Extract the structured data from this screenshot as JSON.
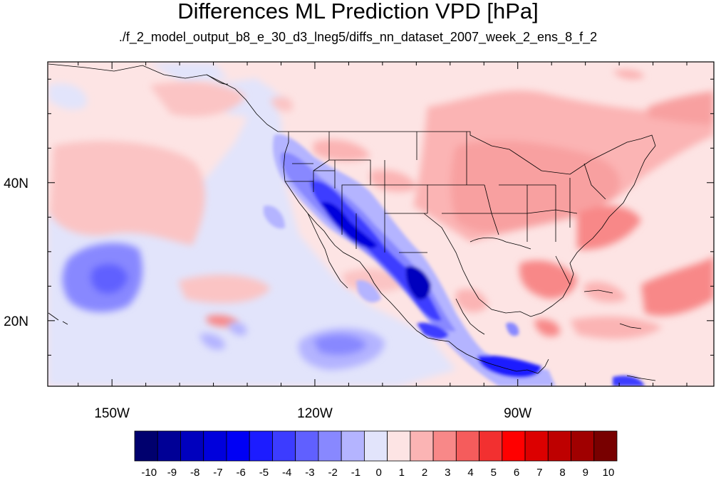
{
  "title": "Differences ML Prediction VPD [hPa]",
  "subtitle": "./f_2_model_output_b8_e_30_d3_lneg5/diffs_nn_dataset_2007_week_2_ens_8_f_2",
  "map": {
    "lon_range": [
      -159.5,
      -61.0
    ],
    "lat_range": [
      10.5,
      57.5
    ],
    "x_ticks": [
      {
        "lon": -150,
        "label": "150W"
      },
      {
        "lon": -120,
        "label": "120W"
      },
      {
        "lon": -90,
        "label": "90W"
      }
    ],
    "y_ticks": [
      {
        "lat": 40,
        "label": "40N"
      },
      {
        "lat": 20,
        "label": "20N"
      }
    ]
  },
  "colorbar": {
    "labels": [
      "-10",
      "-9",
      "-8",
      "-7",
      "-6",
      "-5",
      "-4",
      "-3",
      "-2",
      "-1",
      "0",
      "1",
      "2",
      "3",
      "4",
      "5",
      "6",
      "7",
      "8",
      "9",
      "10"
    ],
    "colors": [
      "#00006e",
      "#000096",
      "#0000be",
      "#0000dc",
      "#0000f5",
      "#1c1cff",
      "#3c3cff",
      "#6060ff",
      "#8888ff",
      "#b4b4ff",
      "#e2e4fb",
      "#fde4e4",
      "#fbb4b4",
      "#f88888",
      "#f55c5c",
      "#f23030",
      "#ff0000",
      "#dc0000",
      "#be0000",
      "#a00000",
      "#780000"
    ],
    "background_pink": "#fde4e4",
    "land_pink": "#fbc4c4"
  }
}
